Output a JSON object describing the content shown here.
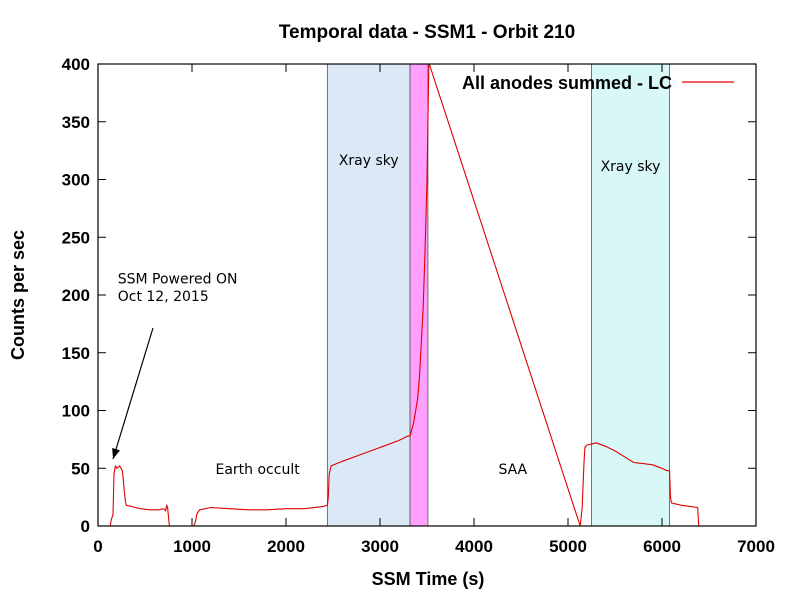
{
  "chart_data": {
    "type": "line",
    "title": "Temporal data - SSM1 - Orbit 210",
    "xlabel": "SSM Time (s)",
    "ylabel": "Counts per sec",
    "xlim": [
      0,
      7000
    ],
    "ylim": [
      0,
      400
    ],
    "x_ticks": [
      "0",
      "1000",
      "2000",
      "3000",
      "4000",
      "5000",
      "6000",
      "7000"
    ],
    "y_ticks": [
      "0",
      "50",
      "100",
      "150",
      "200",
      "250",
      "300",
      "350",
      "400"
    ],
    "grid": false,
    "legend_position": "top-right",
    "series": [
      {
        "name": "All anodes summed - LC",
        "color": "#e00000",
        "x": [
          130,
          140,
          160,
          170,
          185,
          200,
          230,
          260,
          280,
          290,
          300,
          350,
          450,
          550,
          650,
          700,
          720,
          730,
          740,
          750,
          760,
          1020,
          1040,
          1050,
          1080,
          1200,
          1400,
          1600,
          1800,
          2000,
          2200,
          2400,
          2440,
          2450,
          2460,
          2480,
          2600,
          2800,
          3000,
          3200,
          3300,
          3320,
          3360,
          3400,
          3420,
          3440,
          3460,
          3480,
          3500,
          3510,
          3520,
          3525,
          5130,
          5150,
          5170,
          5180,
          5200,
          5300,
          5400,
          5500,
          5600,
          5700,
          5800,
          5900,
          6000,
          6050,
          6080,
          6090,
          6100,
          6200,
          6300,
          6380,
          6390
        ],
        "y": [
          0,
          5,
          10,
          45,
          52,
          50,
          52,
          48,
          30,
          22,
          18,
          17,
          15,
          14,
          14,
          15,
          13,
          18,
          16,
          8,
          0,
          0,
          5,
          10,
          14,
          16,
          15,
          14,
          14,
          15,
          15,
          17,
          18,
          25,
          45,
          52,
          56,
          62,
          68,
          74,
          78,
          78,
          90,
          110,
          130,
          160,
          190,
          240,
          300,
          350,
          400,
          400,
          0,
          15,
          55,
          68,
          70,
          72,
          69,
          65,
          60,
          55,
          54,
          53,
          50,
          48,
          48,
          25,
          20,
          18,
          17,
          16,
          0
        ]
      }
    ],
    "regions": [
      {
        "label": "Xray sky",
        "x_start": 2440,
        "x_end": 3320,
        "color": "#dbe9f6"
      },
      {
        "label": "",
        "x_start": 3320,
        "x_end": 3510,
        "color": "#ff9fff"
      },
      {
        "label": "Xray sky",
        "x_start": 5250,
        "x_end": 6080,
        "color": "#d8f8f8"
      }
    ],
    "annotations": [
      {
        "text": "SSM Powered ON",
        "x": 210,
        "y": 210
      },
      {
        "text": "Oct 12, 2015",
        "x": 210,
        "y": 195
      },
      {
        "text": "Earth occult",
        "x": 1250,
        "y": 45
      },
      {
        "text": "SAA",
        "x": 4260,
        "y": 45
      }
    ]
  }
}
